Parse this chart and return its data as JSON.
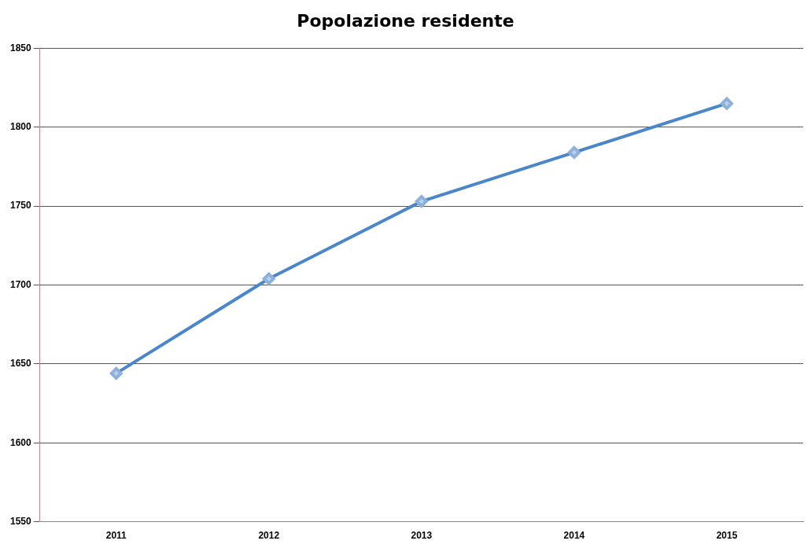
{
  "chart_data": {
    "type": "line",
    "title": "Popolazione residente",
    "categories": [
      "2011",
      "2012",
      "2013",
      "2014",
      "2015"
    ],
    "series": [
      {
        "color": "#4a86c8",
        "values": [
          1644,
          1704,
          1753,
          1784,
          1815
        ]
      }
    ],
    "ylim": [
      1550,
      1850
    ],
    "yticks": [
      1550,
      1600,
      1650,
      1700,
      1750,
      1800,
      1850
    ],
    "grid": "y",
    "legend": false,
    "marker": "diamond",
    "line_style": "solid"
  }
}
